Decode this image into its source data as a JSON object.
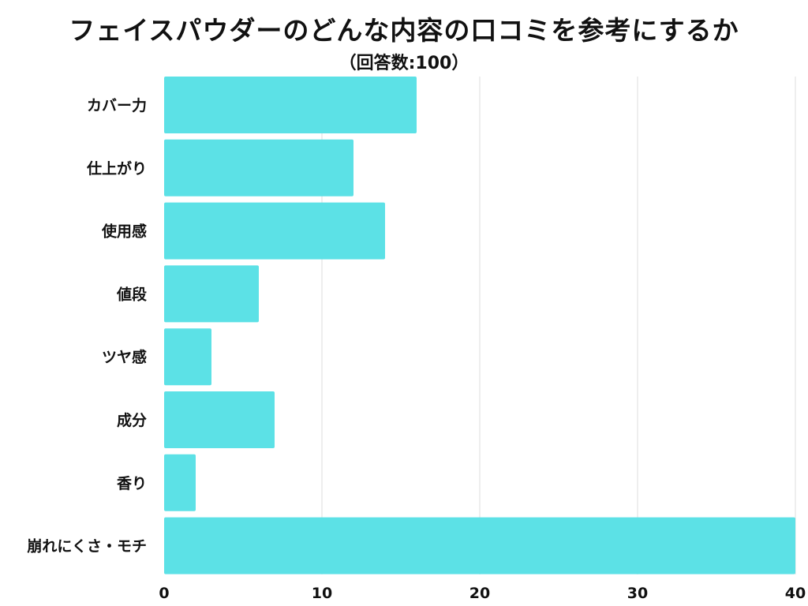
{
  "chart_data": {
    "type": "bar",
    "orientation": "horizontal",
    "title": "フェイスパウダーのどんな内容の口コミを参考にするか",
    "subtitle": "（回答数:100）",
    "categories": [
      "カバー力",
      "仕上がり",
      "使用感",
      "値段",
      "ツヤ感",
      "成分",
      "香り",
      "崩れにくさ・モチ"
    ],
    "values": [
      16,
      12,
      14,
      6,
      3,
      7,
      2,
      40
    ],
    "xlim": [
      0,
      40
    ],
    "xticks": [
      0,
      10,
      20,
      30,
      40
    ],
    "xlabel": "",
    "ylabel": "",
    "grid": true,
    "legend": "none",
    "bar_color": "#5ce1e6",
    "grid_color": "#dddddd"
  }
}
